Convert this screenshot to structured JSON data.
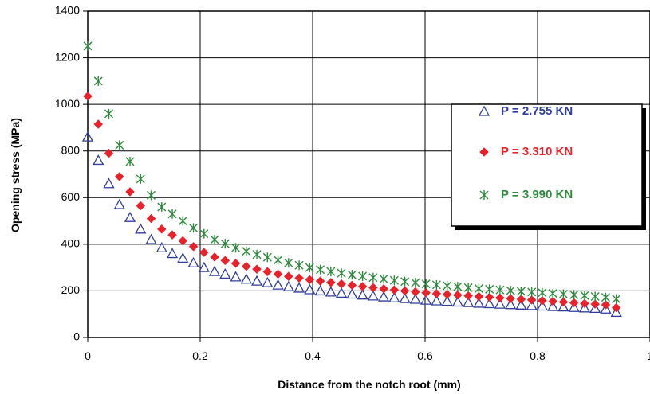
{
  "chart_data": {
    "type": "scatter",
    "title": "",
    "xlabel": "Distance from the notch root (mm)",
    "ylabel": "Opening stress (MPa)",
    "xlim": [
      0,
      1
    ],
    "ylim": [
      0,
      1400
    ],
    "x_ticks": [
      "0",
      "0.2",
      "0.4",
      "0.6",
      "0.8",
      "1"
    ],
    "y_ticks": [
      "0",
      "200",
      "400",
      "600",
      "800",
      "1000",
      "1200",
      "1400"
    ],
    "grid": true,
    "legend_position": "right",
    "series": [
      {
        "name": "P = 2.755 KN",
        "marker": "triangle",
        "color": "#2f3d9e",
        "x": [
          0.0,
          0.0188,
          0.0376,
          0.0564,
          0.0752,
          0.094,
          0.1128,
          0.1316,
          0.1504,
          0.1692,
          0.188,
          0.2068,
          0.2256,
          0.2444,
          0.2632,
          0.282,
          0.3008,
          0.3196,
          0.3384,
          0.3572,
          0.376,
          0.3948,
          0.4136,
          0.4324,
          0.4512,
          0.47,
          0.4888,
          0.5076,
          0.5264,
          0.5452,
          0.564,
          0.5828,
          0.6016,
          0.6204,
          0.6392,
          0.658,
          0.6768,
          0.6956,
          0.7144,
          0.7332,
          0.752,
          0.7708,
          0.7896,
          0.8084,
          0.8272,
          0.846,
          0.8648,
          0.8836,
          0.9024,
          0.9212,
          0.94
        ],
        "y": [
          860,
          760,
          660,
          570,
          515,
          465,
          420,
          385,
          360,
          340,
          320,
          300,
          283,
          272,
          260,
          250,
          242,
          235,
          225,
          218,
          212,
          205,
          200,
          195,
          190,
          186,
          182,
          178,
          174,
          170,
          167,
          164,
          160,
          157,
          155,
          152,
          150,
          147,
          145,
          143,
          141,
          139,
          137,
          135,
          133,
          131,
          129,
          127,
          125,
          122,
          108
        ]
      },
      {
        "name": "P = 3.310 KN",
        "marker": "diamond",
        "color": "#e8222a",
        "x": [
          0.0,
          0.0188,
          0.0376,
          0.0564,
          0.0752,
          0.094,
          0.1128,
          0.1316,
          0.1504,
          0.1692,
          0.188,
          0.2068,
          0.2256,
          0.2444,
          0.2632,
          0.282,
          0.3008,
          0.3196,
          0.3384,
          0.3572,
          0.376,
          0.3948,
          0.4136,
          0.4324,
          0.4512,
          0.47,
          0.4888,
          0.5076,
          0.5264,
          0.5452,
          0.564,
          0.5828,
          0.6016,
          0.6204,
          0.6392,
          0.658,
          0.6768,
          0.6956,
          0.7144,
          0.7332,
          0.752,
          0.7708,
          0.7896,
          0.8084,
          0.8272,
          0.846,
          0.8648,
          0.8836,
          0.9024,
          0.9212,
          0.94
        ],
        "y": [
          1035,
          915,
          790,
          690,
          625,
          565,
          510,
          465,
          440,
          415,
          390,
          365,
          345,
          330,
          318,
          305,
          293,
          282,
          272,
          262,
          255,
          248,
          242,
          236,
          230,
          224,
          219,
          214,
          209,
          204,
          200,
          196,
          192,
          188,
          185,
          182,
          179,
          176,
          173,
          170,
          167,
          164,
          161,
          158,
          155,
          152,
          149,
          146,
          143,
          140,
          128
        ]
      },
      {
        "name": "P = 3.990 KN",
        "marker": "asterisk",
        "color": "#2e8a3c",
        "x": [
          0.0,
          0.0188,
          0.0376,
          0.0564,
          0.0752,
          0.094,
          0.1128,
          0.1316,
          0.1504,
          0.1692,
          0.188,
          0.2068,
          0.2256,
          0.2444,
          0.2632,
          0.282,
          0.3008,
          0.3196,
          0.3384,
          0.3572,
          0.376,
          0.3948,
          0.4136,
          0.4324,
          0.4512,
          0.47,
          0.4888,
          0.5076,
          0.5264,
          0.5452,
          0.564,
          0.5828,
          0.6016,
          0.6204,
          0.6392,
          0.658,
          0.6768,
          0.6956,
          0.7144,
          0.7332,
          0.752,
          0.7708,
          0.7896,
          0.8084,
          0.8272,
          0.846,
          0.8648,
          0.8836,
          0.9024,
          0.9212,
          0.94
        ],
        "y": [
          1250,
          1100,
          960,
          825,
          755,
          680,
          610,
          560,
          530,
          500,
          470,
          445,
          420,
          402,
          385,
          370,
          356,
          344,
          332,
          320,
          310,
          300,
          291,
          283,
          276,
          269,
          263,
          257,
          251,
          245,
          240,
          235,
          230,
          226,
          222,
          218,
          214,
          210,
          207,
          204,
          201,
          198,
          195,
          192,
          189,
          186,
          183,
          180,
          176,
          172,
          165
        ]
      }
    ]
  }
}
